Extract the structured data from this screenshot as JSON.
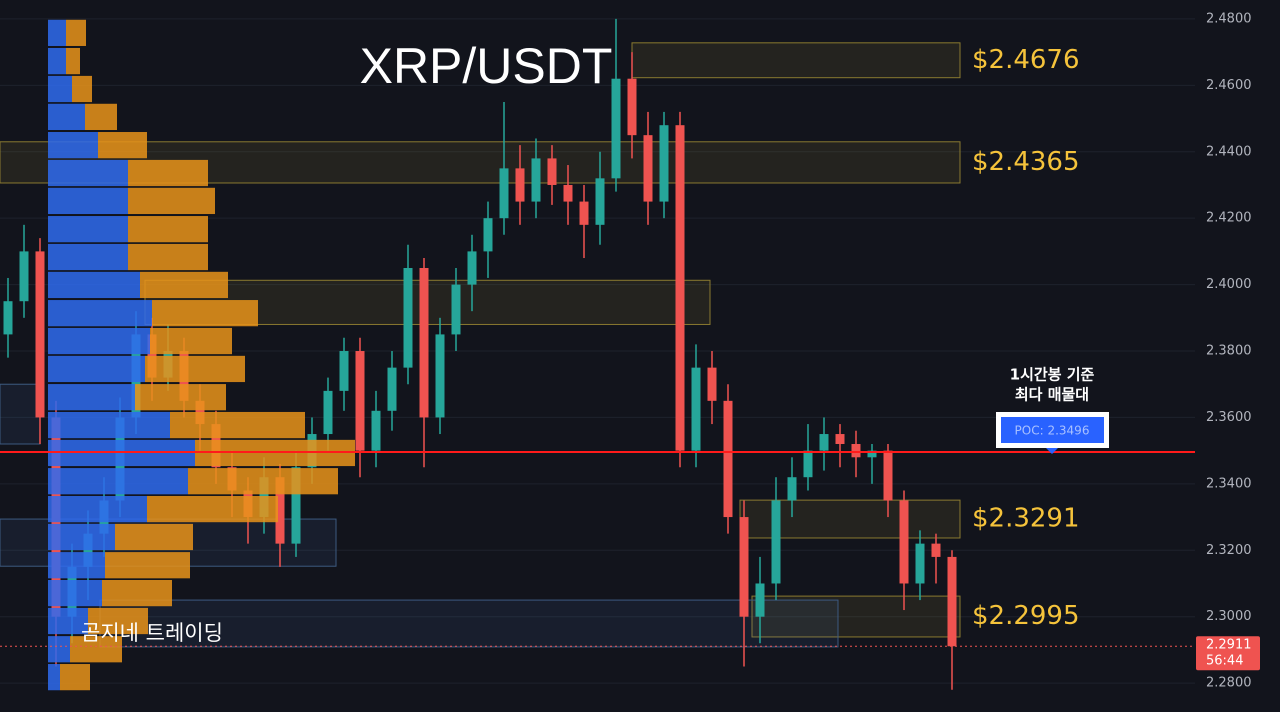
{
  "chart_data": {
    "type": "candlestick",
    "title": "XRP/USDT",
    "watermark": "곰지네 트레이딩",
    "up_color": "#26a69a",
    "down_color": "#ef5350",
    "ylim": [
      2.2713,
      2.4857
    ],
    "yticks": [
      {
        "value": 2.28,
        "label": "2.2800"
      },
      {
        "value": 2.3,
        "label": "2.3000"
      },
      {
        "value": 2.32,
        "label": "2.3200"
      },
      {
        "value": 2.34,
        "label": "2.3400"
      },
      {
        "value": 2.36,
        "label": "2.3600"
      },
      {
        "value": 2.38,
        "label": "2.3800"
      },
      {
        "value": 2.4,
        "label": "2.4000"
      },
      {
        "value": 2.42,
        "label": "2.4200"
      },
      {
        "value": 2.44,
        "label": "2.4400"
      },
      {
        "value": 2.46,
        "label": "2.4600"
      },
      {
        "value": 2.48,
        "label": "2.4800"
      }
    ],
    "grid": true,
    "open": [
      2.385,
      2.395,
      2.41,
      2.36,
      2.3,
      2.315,
      2.325,
      2.335,
      2.36,
      2.385,
      2.372,
      2.38,
      2.365,
      2.358,
      2.345,
      2.338,
      2.33,
      2.342,
      2.322,
      2.345,
      2.355,
      2.368,
      2.38,
      2.35,
      2.362,
      2.375,
      2.405,
      2.36,
      2.385,
      2.4,
      2.41,
      2.42,
      2.435,
      2.425,
      2.438,
      2.43,
      2.425,
      2.418,
      2.432,
      2.462,
      2.445,
      2.425,
      2.448,
      2.35,
      2.375,
      2.365,
      2.33,
      2.3,
      2.31,
      2.335,
      2.342,
      2.35,
      2.355,
      2.352,
      2.348,
      2.35,
      2.335,
      2.31,
      2.322,
      2.318
    ],
    "high": [
      2.402,
      2.418,
      2.414,
      2.365,
      2.322,
      2.332,
      2.342,
      2.366,
      2.392,
      2.39,
      2.388,
      2.384,
      2.37,
      2.362,
      2.35,
      2.342,
      2.348,
      2.346,
      2.35,
      2.36,
      2.372,
      2.384,
      2.384,
      2.368,
      2.38,
      2.412,
      2.408,
      2.39,
      2.405,
      2.415,
      2.425,
      2.455,
      2.442,
      2.444,
      2.442,
      2.436,
      2.43,
      2.44,
      2.48,
      2.47,
      2.452,
      2.452,
      2.452,
      2.382,
      2.38,
      2.37,
      2.335,
      2.318,
      2.342,
      2.348,
      2.358,
      2.36,
      2.358,
      2.356,
      2.352,
      2.352,
      2.338,
      2.326,
      2.325,
      2.32
    ],
    "low": [
      2.378,
      2.39,
      2.352,
      2.285,
      2.292,
      2.305,
      2.318,
      2.33,
      2.355,
      2.365,
      2.368,
      2.36,
      2.35,
      2.34,
      2.33,
      2.322,
      2.325,
      2.315,
      2.318,
      2.34,
      2.35,
      2.362,
      2.342,
      2.345,
      2.356,
      2.37,
      2.345,
      2.355,
      2.38,
      2.392,
      2.402,
      2.415,
      2.418,
      2.42,
      2.424,
      2.418,
      2.408,
      2.412,
      2.428,
      2.438,
      2.418,
      2.42,
      2.345,
      2.345,
      2.358,
      2.325,
      2.285,
      2.292,
      2.305,
      2.33,
      2.338,
      2.344,
      2.345,
      2.342,
      2.34,
      2.33,
      2.302,
      2.305,
      2.31,
      2.278
    ],
    "close": [
      2.395,
      2.41,
      2.36,
      2.3,
      2.315,
      2.325,
      2.335,
      2.36,
      2.385,
      2.372,
      2.38,
      2.365,
      2.358,
      2.345,
      2.338,
      2.33,
      2.342,
      2.322,
      2.345,
      2.355,
      2.368,
      2.38,
      2.35,
      2.362,
      2.375,
      2.405,
      2.36,
      2.385,
      2.4,
      2.41,
      2.42,
      2.435,
      2.425,
      2.438,
      2.43,
      2.425,
      2.418,
      2.432,
      2.462,
      2.445,
      2.425,
      2.448,
      2.35,
      2.375,
      2.365,
      2.33,
      2.3,
      2.31,
      2.335,
      2.342,
      2.35,
      2.355,
      2.352,
      2.348,
      2.35,
      2.335,
      2.31,
      2.322,
      2.318,
      2.2911
    ],
    "volume_profile": {
      "levels": [
        2.4758,
        2.4673,
        2.4589,
        2.4505,
        2.442,
        2.4336,
        2.4252,
        2.4167,
        2.4083,
        2.3999,
        2.3914,
        2.383,
        2.3746,
        2.3661,
        2.3577,
        2.3493,
        2.3408,
        2.3324,
        2.324,
        2.3155,
        2.3071,
        2.2987,
        2.2902,
        2.2818
      ],
      "buy": [
        18,
        18,
        24,
        37,
        50,
        80,
        80,
        80,
        80,
        92,
        104,
        102,
        97,
        87,
        122,
        147,
        140,
        99,
        67,
        57,
        54,
        40,
        22,
        12
      ],
      "sell": [
        20,
        14,
        20,
        32,
        49,
        80,
        87,
        80,
        80,
        88,
        106,
        82,
        100,
        91,
        135,
        160,
        150,
        131,
        78,
        85,
        70,
        60,
        52,
        30
      ],
      "buy_color": "#2f6bef",
      "sell_color": "#e8931a"
    },
    "zones": [
      {
        "top": 2.4728,
        "bottom": 2.4623,
        "label": "$2.4676"
      },
      {
        "top": 2.443,
        "bottom": 2.4306,
        "label": "$2.4365"
      },
      {
        "top": 2.3351,
        "bottom": 2.3237,
        "label": "$2.3291"
      },
      {
        "top": 2.3062,
        "bottom": 2.2939,
        "label": "$2.2995"
      },
      {
        "top": 2.4013,
        "bottom": 2.388
      },
      {
        "top": 2.3294,
        "bottom": 2.3152
      },
      {
        "top": 2.305,
        "bottom": 2.2909
      },
      {
        "top": 2.37,
        "bottom": 2.352
      }
    ],
    "poc": {
      "value": 2.3496,
      "label": "POC: 2.3496",
      "note": [
        "1시간봉 기준",
        "최다 매물대"
      ]
    },
    "last_price": 2.2911,
    "countdown": "56:44"
  }
}
